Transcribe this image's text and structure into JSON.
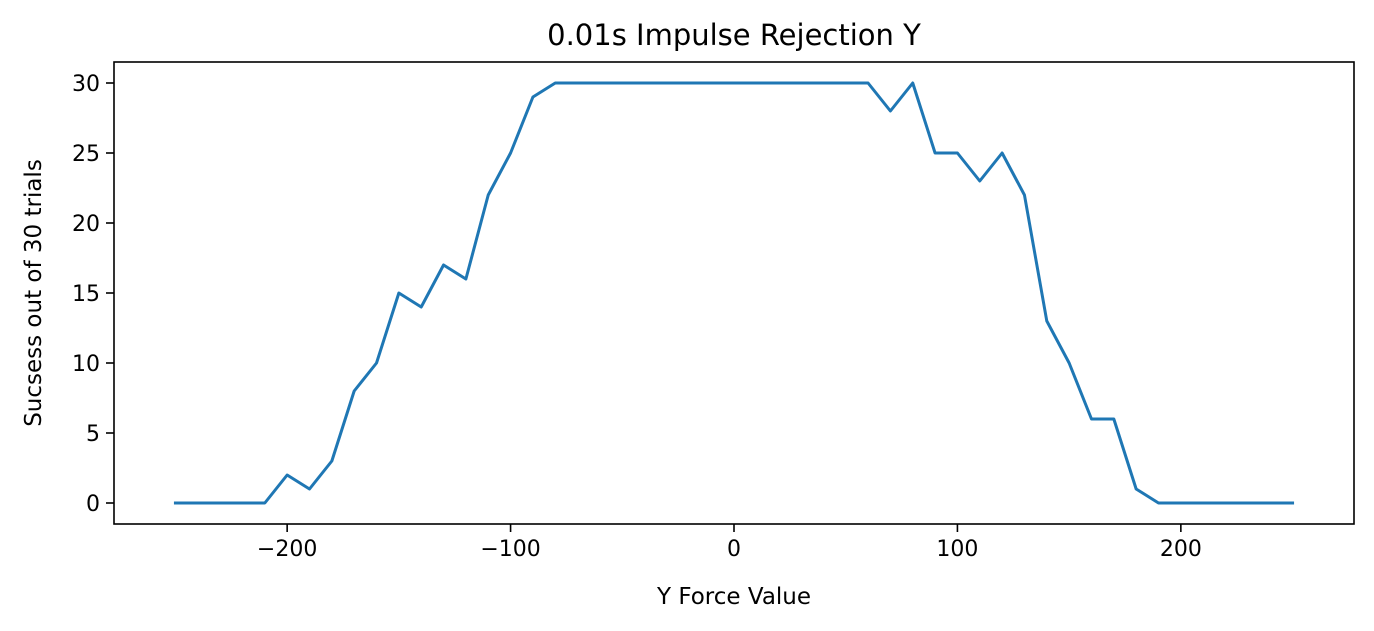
{
  "chart_data": {
    "type": "line",
    "title": "0.01s Impulse Rejection Y",
    "xlabel": "Y Force Value",
    "ylabel": "Sucsess out of 30 trials",
    "xlim": [
      -277.5,
      277.5
    ],
    "ylim": [
      -1.5,
      31.5
    ],
    "x_ticks": [
      -200,
      -100,
      0,
      100,
      200
    ],
    "x_tick_labels": [
      "−200",
      "−100",
      "0",
      "100",
      "200"
    ],
    "y_ticks": [
      0,
      5,
      10,
      15,
      20,
      25,
      30
    ],
    "y_tick_labels": [
      "0",
      "5",
      "10",
      "15",
      "20",
      "25",
      "30"
    ],
    "grid": false,
    "series": [
      {
        "color": "#1f77b4",
        "x": [
          -250,
          -240,
          -230,
          -220,
          -210,
          -200,
          -190,
          -180,
          -170,
          -160,
          -150,
          -140,
          -130,
          -120,
          -110,
          -100,
          -90,
          -80,
          -70,
          -60,
          -50,
          -40,
          -30,
          -20,
          -10,
          0,
          10,
          20,
          30,
          40,
          50,
          60,
          70,
          80,
          90,
          100,
          110,
          120,
          130,
          140,
          150,
          160,
          170,
          180,
          190,
          200,
          210,
          220,
          230,
          240,
          250
        ],
        "y": [
          0,
          0,
          0,
          0,
          0,
          2,
          1,
          3,
          8,
          10,
          15,
          14,
          17,
          16,
          22,
          25,
          29,
          30,
          30,
          30,
          30,
          30,
          30,
          30,
          30,
          30,
          30,
          30,
          30,
          30,
          30,
          30,
          28,
          30,
          25,
          25,
          23,
          25,
          22,
          13,
          10,
          6,
          6,
          1,
          0,
          0,
          0,
          0,
          0,
          0,
          0
        ]
      }
    ]
  }
}
